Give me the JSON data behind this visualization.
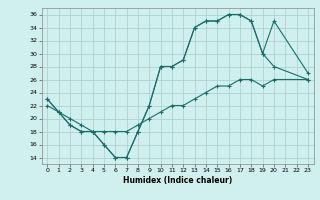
{
  "xlabel": "Humidex (Indice chaleur)",
  "xlim": [
    -0.5,
    23.5
  ],
  "ylim": [
    13,
    37
  ],
  "yticks": [
    14,
    16,
    18,
    20,
    22,
    24,
    26,
    28,
    30,
    32,
    34,
    36
  ],
  "xticks": [
    0,
    1,
    2,
    3,
    4,
    5,
    6,
    7,
    8,
    9,
    10,
    11,
    12,
    13,
    14,
    15,
    16,
    17,
    18,
    19,
    20,
    21,
    22,
    23
  ],
  "bg_color": "#cff0ee",
  "grid_color": "#aacccc",
  "line_color": "#1a6e6a",
  "curve1_x": [
    0,
    1,
    2,
    3,
    4,
    5,
    6,
    7,
    8,
    9,
    10,
    11,
    12,
    13,
    14,
    15,
    16,
    17,
    18,
    19,
    20,
    23
  ],
  "curve1_y": [
    23,
    21,
    19,
    18,
    18,
    16,
    14,
    14,
    18,
    22,
    28,
    28,
    29,
    34,
    35,
    35,
    36,
    36,
    35,
    30,
    28,
    26
  ],
  "curve2_x": [
    0,
    1,
    2,
    3,
    4,
    5,
    6,
    7,
    8,
    9,
    10,
    11,
    12,
    13,
    14,
    15,
    16,
    17,
    18,
    19,
    20,
    23
  ],
  "curve2_y": [
    23,
    21,
    19,
    18,
    18,
    16,
    14,
    14,
    18,
    22,
    28,
    28,
    29,
    34,
    35,
    35,
    36,
    36,
    35,
    30,
    35,
    27
  ],
  "curve3_x": [
    0,
    1,
    2,
    3,
    4,
    5,
    6,
    7,
    8,
    9,
    10,
    11,
    12,
    13,
    14,
    15,
    16,
    17,
    18,
    19,
    20,
    23
  ],
  "curve3_y": [
    22,
    21,
    20,
    19,
    18,
    18,
    18,
    18,
    19,
    20,
    21,
    22,
    22,
    23,
    24,
    25,
    25,
    26,
    26,
    25,
    26,
    26
  ],
  "lw": 0.8,
  "ms": 2.8,
  "xlabel_fontsize": 5.5,
  "tick_fontsize": 4.5
}
